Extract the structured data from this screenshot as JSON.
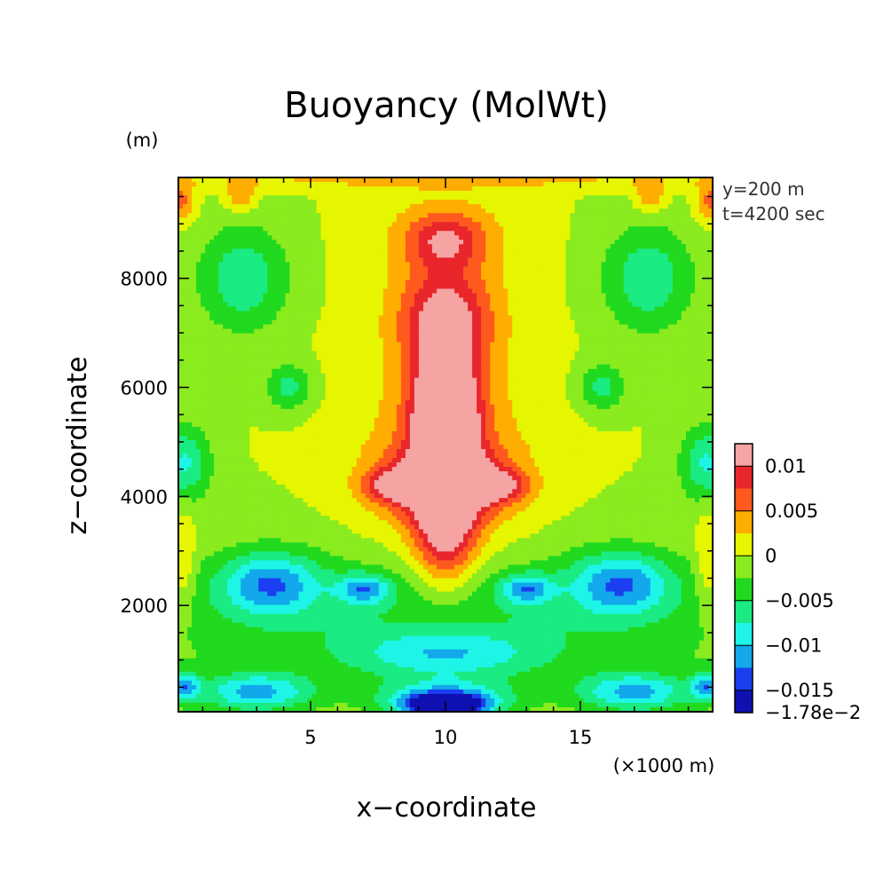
{
  "chart_data": {
    "type": "heatmap",
    "title": "Buoyancy (MolWt)",
    "xlabel": "x−coordinate",
    "ylabel": "z−coordinate",
    "x_unit": "(×1000 m)",
    "y_unit": "(m)",
    "info_lines": [
      "y=200 m",
      "t=4200 sec"
    ],
    "xlim": [
      0.1,
      19.9
    ],
    "ylim": [
      50,
      9850
    ],
    "x_ticks": [
      5,
      10,
      15
    ],
    "x_tick_labels": [
      "5",
      "10",
      "15"
    ],
    "y_ticks": [
      2000,
      4000,
      6000,
      8000
    ],
    "y_tick_labels": [
      "2000",
      "4000",
      "6000",
      "8000"
    ],
    "colorbar": {
      "labels": [
        "0.01",
        "0.005",
        "0",
        "−0.005",
        "−0.01",
        "−0.015",
        "−1.78e−2"
      ],
      "colors": [
        "#f5a3a3",
        "#e8262b",
        "#ff5a1e",
        "#ffad00",
        "#e6f500",
        "#8aeb1e",
        "#21d91e",
        "#1aeb82",
        "#1ef5e6",
        "#12a8eb",
        "#1a3ef0",
        "#0f10b0"
      ],
      "vmin": -0.0178,
      "vmax": 0.0125
    },
    "field": {
      "background": 0.0,
      "blobs": [
        [
          10,
          4700,
          0.6,
          600,
          0.015
        ],
        [
          10,
          5500,
          0.7,
          400,
          0.011
        ],
        [
          10,
          4300,
          1.6,
          500,
          0.011
        ],
        [
          10,
          3400,
          0.8,
          700,
          0.011
        ],
        [
          10,
          6200,
          0.9,
          900,
          0.011
        ],
        [
          8.2,
          4200,
          0.8,
          200,
          0.009
        ],
        [
          11.8,
          4200,
          0.8,
          200,
          0.009
        ],
        [
          10,
          8700,
          1.0,
          350,
          0.007
        ],
        [
          10,
          7400,
          1.3,
          600,
          0.007
        ],
        [
          10,
          5000,
          2.3,
          1800,
          0.004
        ],
        [
          10,
          8800,
          1.8,
          600,
          0.003
        ],
        [
          0.2,
          9400,
          0.35,
          250,
          0.006
        ],
        [
          19.8,
          9400,
          0.35,
          250,
          0.006
        ],
        [
          2.4,
          9500,
          0.4,
          200,
          0.005
        ],
        [
          17.6,
          9500,
          0.4,
          200,
          0.005
        ],
        [
          10,
          9800,
          10,
          120,
          0.003
        ],
        [
          0.3,
          2800,
          0.3,
          700,
          0.004
        ],
        [
          19.7,
          2800,
          0.3,
          700,
          0.004
        ],
        [
          2.5,
          8000,
          1.2,
          700,
          -0.007
        ],
        [
          17.5,
          8000,
          1.2,
          700,
          -0.007
        ],
        [
          4.2,
          6000,
          0.6,
          300,
          -0.006
        ],
        [
          15.8,
          6000,
          0.6,
          300,
          -0.006
        ],
        [
          0.3,
          4600,
          0.7,
          500,
          -0.008
        ],
        [
          19.7,
          4600,
          0.7,
          500,
          -0.008
        ],
        [
          3.5,
          2400,
          1.3,
          400,
          -0.01
        ],
        [
          16.5,
          2400,
          1.3,
          400,
          -0.01
        ],
        [
          7.0,
          2300,
          0.7,
          200,
          -0.009
        ],
        [
          13.0,
          2300,
          0.7,
          200,
          -0.009
        ],
        [
          10,
          1800,
          10,
          900,
          -0.005
        ],
        [
          10,
          1100,
          2.5,
          300,
          -0.007
        ],
        [
          3.0,
          400,
          1.5,
          250,
          -0.01
        ],
        [
          17.0,
          400,
          1.5,
          250,
          -0.01
        ],
        [
          10,
          150,
          1.0,
          150,
          -0.02
        ],
        [
          10,
          300,
          1.8,
          250,
          -0.009
        ],
        [
          0.3,
          500,
          0.4,
          200,
          -0.01
        ],
        [
          19.7,
          500,
          0.4,
          200,
          -0.01
        ]
      ]
    }
  }
}
